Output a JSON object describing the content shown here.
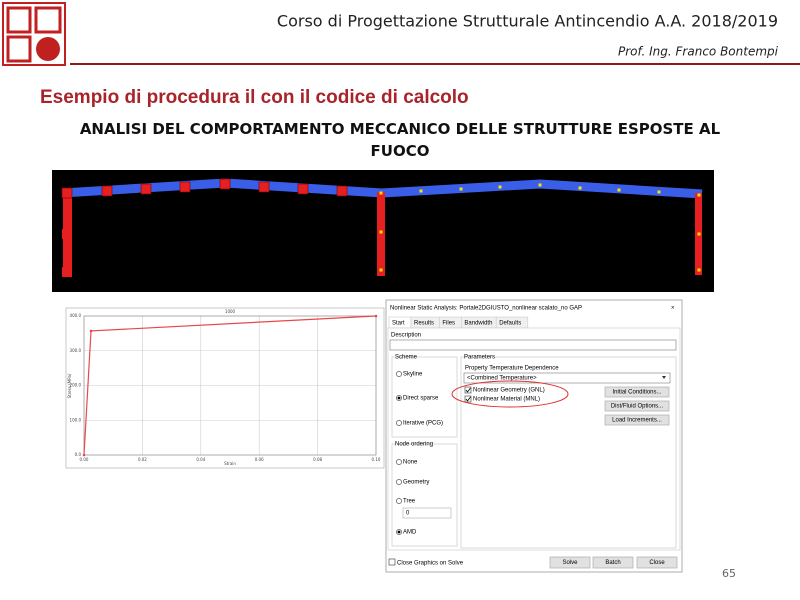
{
  "header": {
    "course": "Corso di Progettazione Strutturale Antincendio A.A. 2018/2019",
    "author": "Prof. Ing. Franco Bontempi"
  },
  "title": "Esempio di procedura il con il codice di calcolo",
  "subtitle": "ANALISI DEL COMPORTAMENTO MECCANICO DELLE STRUTTURE ESPOSTE AL FUOCO",
  "chart_data": {
    "type": "line",
    "title": "1000",
    "x_label": "Strain",
    "y_label": "Stress (MPa)",
    "x": [
      0,
      0.0024,
      0.1
    ],
    "values": [
      0,
      357,
      400
    ],
    "color": "#e8474a",
    "xlim": [
      0,
      0.1
    ],
    "ylim": [
      0,
      400
    ],
    "xticks": [
      {
        "value": 0,
        "label": "0.00"
      },
      {
        "value": 0.02,
        "label": "0.02"
      },
      {
        "value": 0.04,
        "label": "0.04"
      },
      {
        "value": 0.06,
        "label": "0.06"
      },
      {
        "value": 0.08,
        "label": "0.08"
      },
      {
        "value": 0.1,
        "label": "0.10"
      }
    ],
    "yticks": [
      {
        "value": 0,
        "label": "0.0"
      },
      {
        "value": 100,
        "label": "100.0"
      },
      {
        "value": 200,
        "label": "200.0"
      },
      {
        "value": 300,
        "label": "300.0"
      },
      {
        "value": 400,
        "label": "400.0"
      }
    ],
    "grid": true
  },
  "dialog": {
    "title": "Nonlinear Static Analysis: Portale2DGIUSTO_nonlinear scalato_no GAP",
    "close": "×",
    "tabs": [
      "Start",
      "Results",
      "Files",
      "Bandwidth",
      "Defaults"
    ],
    "description_label": "Description",
    "scheme": {
      "label": "Scheme",
      "options": [
        "Skyline",
        "Direct sparse",
        "Iterative (PCG)"
      ]
    },
    "node_ordering": {
      "label": "Node ordering",
      "options": [
        "None",
        "Geometry",
        "Tree",
        "AMD"
      ],
      "tree_value": "0"
    },
    "parameters": {
      "label": "Parameters",
      "temperature_label": "Property Temperature Dependence",
      "temperature_value": "<Combined Temperature>",
      "checks": [
        "Nonlinear Geometry (GNL)",
        "Nonlinear Material (MNL)"
      ],
      "buttons": [
        "Initial Conditions...",
        "Dist/Fluid Options...",
        "Load Increments..."
      ]
    },
    "close_graphics": "Close Graphics on Solve",
    "footer_buttons": [
      "Solve",
      "Batch",
      "Close"
    ]
  },
  "page_number": "65"
}
